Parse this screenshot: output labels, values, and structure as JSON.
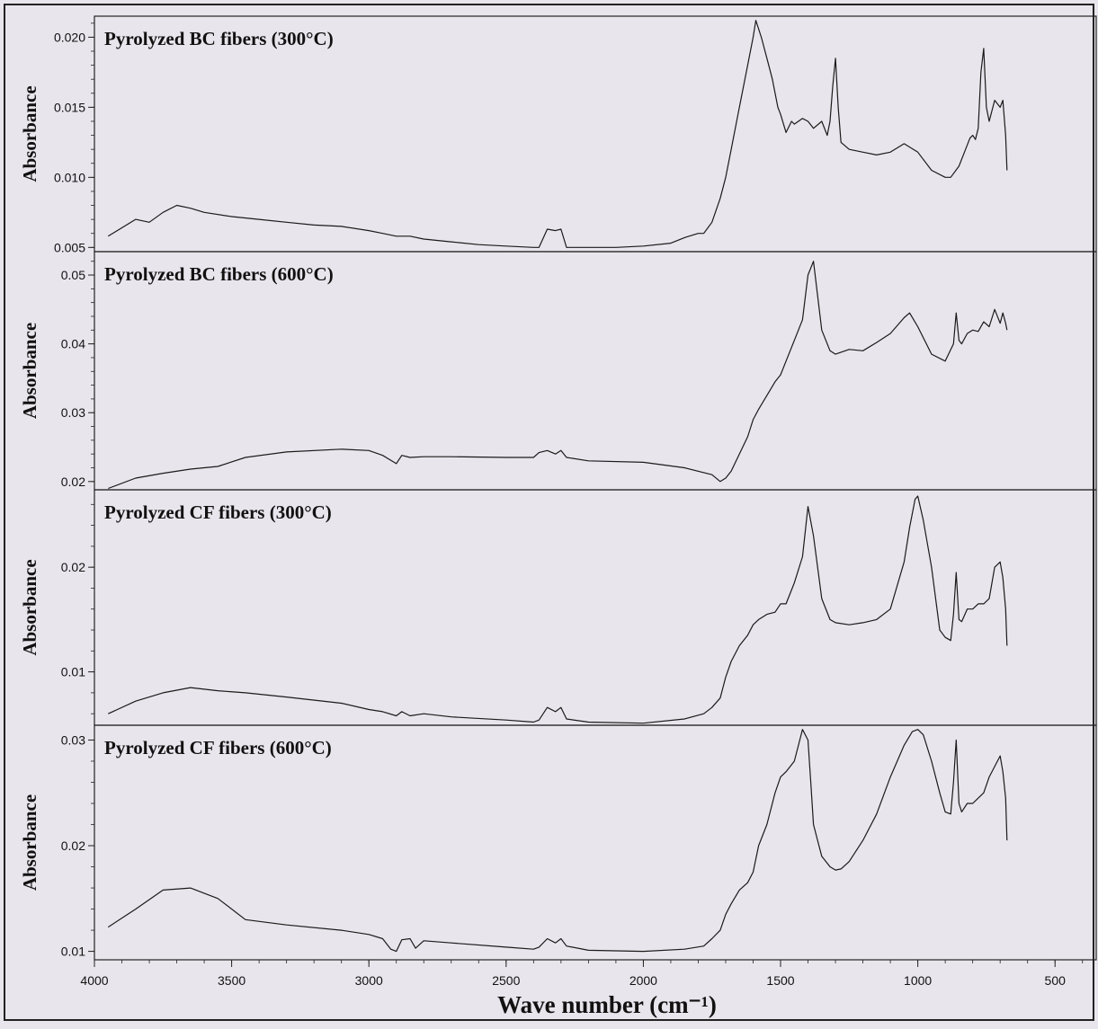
{
  "chart_data": {
    "type": "line",
    "xlabel": "Wave number (cm⁻¹)",
    "xlim": [
      4000,
      350
    ],
    "x_ticks": [
      "4000",
      "3500",
      "3000",
      "2500",
      "2000",
      "1500",
      "1000",
      "500"
    ],
    "x_tick_values": [
      4000,
      3500,
      3000,
      2500,
      2000,
      1500,
      1000,
      500
    ],
    "panels": [
      {
        "title": "Pyrolyzed BC fibers (300°C)",
        "ylabel": "Absorbance",
        "ylim": [
          0.0047,
          0.0215
        ],
        "y_ticks": [
          "0.020",
          "0.015",
          "0.010",
          "0.005"
        ],
        "y_tick_values": [
          0.02,
          0.015,
          0.01,
          0.005
        ],
        "series": [
          {
            "x": [
              3950,
              3850,
              3800,
              3750,
              3700,
              3650,
              3600,
              3500,
              3400,
              3300,
              3200,
              3100,
              3000,
              2950,
              2900,
              2850,
              2800,
              2700,
              2600,
              2500,
              2400,
              2380,
              2350,
              2320,
              2300,
              2280,
              2200,
              2100,
              2000,
              1900,
              1850,
              1800,
              1780,
              1750,
              1720,
              1700,
              1680,
              1650,
              1620,
              1600,
              1590,
              1570,
              1550,
              1530,
              1510,
              1500,
              1480,
              1460,
              1450,
              1420,
              1400,
              1380,
              1350,
              1330,
              1320,
              1310,
              1300,
              1290,
              1280,
              1250,
              1200,
              1150,
              1100,
              1050,
              1000,
              950,
              900,
              880,
              850,
              830,
              810,
              800,
              790,
              780,
              770,
              760,
              750,
              740,
              720,
              700,
              690,
              680,
              675
            ],
            "y": [
              0.0058,
              0.007,
              0.0068,
              0.0075,
              0.008,
              0.0078,
              0.0075,
              0.0072,
              0.007,
              0.0068,
              0.0066,
              0.0065,
              0.0062,
              0.006,
              0.0058,
              0.0058,
              0.0056,
              0.0054,
              0.0052,
              0.0051,
              0.005,
              0.005,
              0.0063,
              0.0062,
              0.0063,
              0.005,
              0.005,
              0.005,
              0.0051,
              0.0053,
              0.0057,
              0.006,
              0.006,
              0.0068,
              0.0085,
              0.01,
              0.012,
              0.015,
              0.018,
              0.02,
              0.0212,
              0.02,
              0.0185,
              0.017,
              0.015,
              0.0145,
              0.0132,
              0.014,
              0.0138,
              0.0142,
              0.014,
              0.0135,
              0.014,
              0.013,
              0.014,
              0.0165,
              0.0185,
              0.015,
              0.0125,
              0.012,
              0.0118,
              0.0116,
              0.0118,
              0.0124,
              0.0118,
              0.0105,
              0.01,
              0.01,
              0.0108,
              0.0118,
              0.0128,
              0.013,
              0.0127,
              0.0135,
              0.0175,
              0.0192,
              0.015,
              0.014,
              0.0155,
              0.015,
              0.0155,
              0.013,
              0.0105
            ]
          }
        ]
      },
      {
        "title": "Pyrolyzed BC fibers (600°C)",
        "ylabel": "Absorbance",
        "ylim": [
          0.0188,
          0.0534
        ],
        "y_ticks": [
          "0.05",
          "0.04",
          "0.03",
          "0.02"
        ],
        "y_tick_values": [
          0.05,
          0.04,
          0.03,
          0.02
        ],
        "series": [
          {
            "x": [
              3950,
              3850,
              3750,
              3650,
              3550,
              3450,
              3300,
              3100,
              3000,
              2950,
              2900,
              2880,
              2850,
              2800,
              2700,
              2500,
              2400,
              2380,
              2350,
              2320,
              2300,
              2280,
              2200,
              2000,
              1850,
              1750,
              1720,
              1700,
              1680,
              1650,
              1620,
              1600,
              1580,
              1550,
              1520,
              1500,
              1480,
              1450,
              1420,
              1400,
              1380,
              1350,
              1320,
              1300,
              1250,
              1200,
              1150,
              1100,
              1050,
              1030,
              1000,
              950,
              900,
              870,
              860,
              850,
              840,
              820,
              800,
              780,
              760,
              740,
              720,
              700,
              690,
              680,
              675
            ],
            "y": [
              0.019,
              0.0205,
              0.0212,
              0.0218,
              0.0222,
              0.0235,
              0.0243,
              0.0247,
              0.0245,
              0.0238,
              0.0226,
              0.0238,
              0.0235,
              0.0236,
              0.0236,
              0.0235,
              0.0235,
              0.0242,
              0.0245,
              0.024,
              0.0245,
              0.0235,
              0.023,
              0.0228,
              0.022,
              0.021,
              0.02,
              0.0205,
              0.0215,
              0.024,
              0.0265,
              0.029,
              0.0305,
              0.0325,
              0.0345,
              0.0355,
              0.0375,
              0.0405,
              0.0435,
              0.05,
              0.052,
              0.042,
              0.039,
              0.0385,
              0.0392,
              0.039,
              0.0402,
              0.0415,
              0.0438,
              0.0445,
              0.0425,
              0.0385,
              0.0375,
              0.04,
              0.0445,
              0.0405,
              0.04,
              0.0415,
              0.042,
              0.0418,
              0.0432,
              0.0425,
              0.045,
              0.043,
              0.0445,
              0.043,
              0.042
            ]
          }
        ]
      },
      {
        "title": "Pyrolyzed CF fibers (300°C)",
        "ylabel": "Absorbance",
        "ylim": [
          0.0049,
          0.0274
        ],
        "y_ticks": [
          "0.02",
          "0.01"
        ],
        "y_tick_values": [
          0.02,
          0.01
        ],
        "series": [
          {
            "x": [
              3950,
              3850,
              3750,
              3650,
              3550,
              3450,
              3300,
              3100,
              3000,
              2950,
              2900,
              2880,
              2850,
              2800,
              2700,
              2500,
              2400,
              2380,
              2350,
              2320,
              2300,
              2280,
              2200,
              2000,
              1850,
              1780,
              1750,
              1720,
              1700,
              1680,
              1650,
              1620,
              1600,
              1580,
              1550,
              1520,
              1500,
              1480,
              1450,
              1420,
              1400,
              1380,
              1350,
              1320,
              1300,
              1250,
              1200,
              1150,
              1100,
              1080,
              1050,
              1030,
              1010,
              1000,
              980,
              950,
              920,
              900,
              880,
              870,
              860,
              850,
              840,
              820,
              800,
              780,
              760,
              740,
              720,
              700,
              690,
              680,
              675
            ],
            "y": [
              0.006,
              0.0072,
              0.008,
              0.0085,
              0.0082,
              0.008,
              0.0076,
              0.007,
              0.0064,
              0.0062,
              0.0058,
              0.0062,
              0.0058,
              0.006,
              0.0057,
              0.0054,
              0.0052,
              0.0054,
              0.0066,
              0.0062,
              0.0066,
              0.0055,
              0.0052,
              0.0051,
              0.0055,
              0.006,
              0.0066,
              0.0075,
              0.0095,
              0.011,
              0.0125,
              0.0135,
              0.0145,
              0.015,
              0.0155,
              0.0157,
              0.0165,
              0.0165,
              0.0185,
              0.021,
              0.0258,
              0.023,
              0.017,
              0.015,
              0.0147,
              0.0145,
              0.0147,
              0.015,
              0.016,
              0.0178,
              0.0205,
              0.0238,
              0.0265,
              0.0268,
              0.0245,
              0.02,
              0.014,
              0.0133,
              0.013,
              0.0155,
              0.0195,
              0.015,
              0.0148,
              0.016,
              0.016,
              0.0165,
              0.0165,
              0.017,
              0.02,
              0.0205,
              0.019,
              0.016,
              0.0125
            ]
          }
        ]
      },
      {
        "title": "Pyrolyzed CF fibers (600°C)",
        "ylabel": "Absorbance",
        "ylim": [
          0.0092,
          0.0314
        ],
        "y_ticks": [
          "0.03",
          "0.02",
          "0.01"
        ],
        "y_tick_values": [
          0.03,
          0.02,
          0.01
        ],
        "series": [
          {
            "x": [
              3950,
              3850,
              3750,
              3650,
              3550,
              3450,
              3300,
              3100,
              3000,
              2950,
              2920,
              2900,
              2880,
              2850,
              2830,
              2800,
              2700,
              2500,
              2400,
              2380,
              2350,
              2320,
              2300,
              2280,
              2200,
              2000,
              1850,
              1780,
              1750,
              1720,
              1700,
              1680,
              1650,
              1620,
              1600,
              1580,
              1550,
              1520,
              1500,
              1480,
              1450,
              1420,
              1400,
              1390,
              1380,
              1350,
              1320,
              1300,
              1280,
              1250,
              1200,
              1150,
              1100,
              1050,
              1020,
              1000,
              980,
              950,
              920,
              900,
              880,
              870,
              860,
              850,
              840,
              820,
              800,
              780,
              760,
              740,
              720,
              700,
              690,
              680,
              675
            ],
            "y": [
              0.0123,
              0.014,
              0.0158,
              0.016,
              0.015,
              0.013,
              0.0125,
              0.012,
              0.0116,
              0.0112,
              0.0102,
              0.01,
              0.0111,
              0.0112,
              0.0103,
              0.011,
              0.0108,
              0.0104,
              0.0102,
              0.0104,
              0.0112,
              0.0108,
              0.0112,
              0.0105,
              0.0101,
              0.01,
              0.0102,
              0.0105,
              0.0112,
              0.012,
              0.0135,
              0.0145,
              0.0158,
              0.0165,
              0.0175,
              0.02,
              0.022,
              0.025,
              0.0265,
              0.027,
              0.028,
              0.031,
              0.03,
              0.026,
              0.022,
              0.019,
              0.018,
              0.0177,
              0.0178,
              0.0185,
              0.0205,
              0.023,
              0.0265,
              0.0295,
              0.0308,
              0.031,
              0.0305,
              0.028,
              0.025,
              0.0232,
              0.023,
              0.026,
              0.03,
              0.024,
              0.0232,
              0.024,
              0.024,
              0.0245,
              0.025,
              0.0265,
              0.0275,
              0.0285,
              0.027,
              0.0245,
              0.0205
            ]
          }
        ]
      }
    ]
  }
}
